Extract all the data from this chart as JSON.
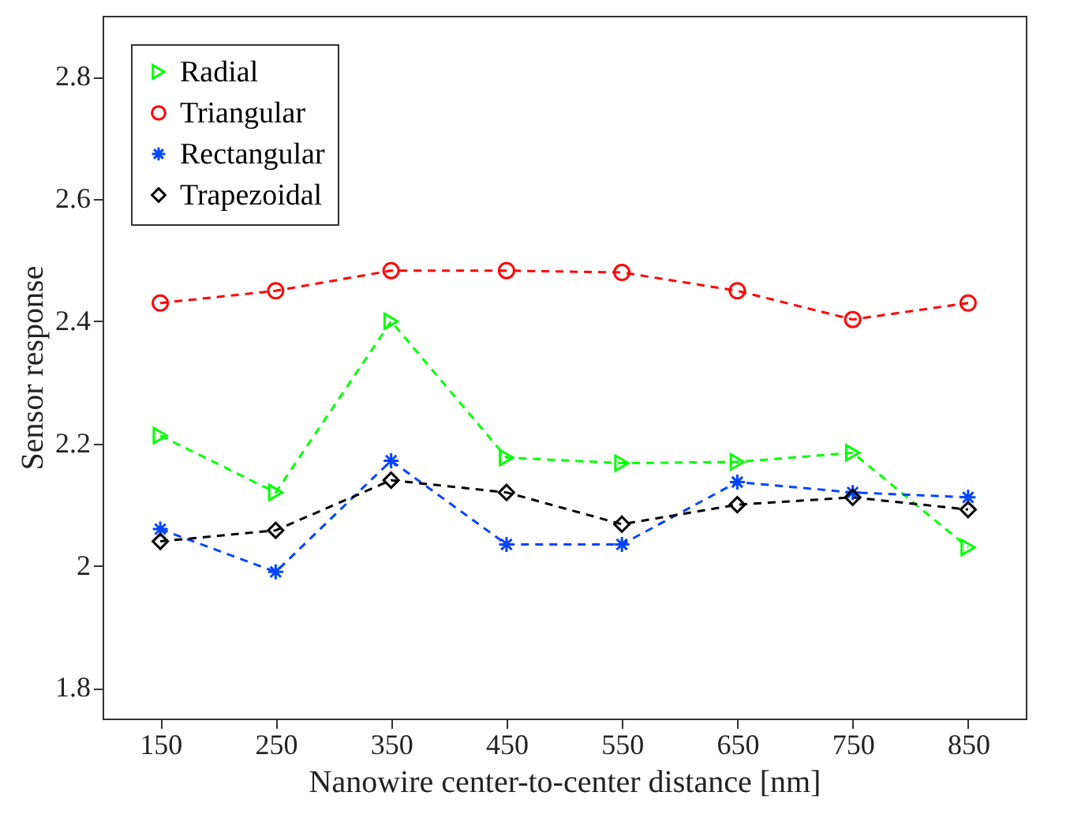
{
  "chart_data": {
    "type": "line",
    "xlabel": "Nanowire center-to-center distance [nm]",
    "ylabel": "Sensor response",
    "x": [
      150,
      250,
      350,
      450,
      550,
      650,
      750,
      850
    ],
    "xlim": [
      100,
      900
    ],
    "xticks": [
      150,
      250,
      350,
      450,
      550,
      650,
      750,
      850
    ],
    "ylim": [
      1.75,
      2.9
    ],
    "yticks": [
      1.8,
      2,
      2.2,
      2.4,
      2.6,
      2.8
    ],
    "line_style": "dashed",
    "legend": "top left",
    "grid": false,
    "series": [
      {
        "name": "Radial",
        "color": "#00ff00",
        "marker": "triangle",
        "values": [
          2.213,
          2.12,
          2.4,
          2.177,
          2.168,
          2.17,
          2.185,
          2.03
        ]
      },
      {
        "name": "Triangular",
        "color": "#ff0000",
        "marker": "circle",
        "values": [
          2.43,
          2.45,
          2.483,
          2.483,
          2.48,
          2.45,
          2.403,
          2.43
        ]
      },
      {
        "name": "Rectangular",
        "color": "#0044ff",
        "marker": "cross",
        "values": [
          2.06,
          1.99,
          2.172,
          2.035,
          2.035,
          2.137,
          2.12,
          2.112
        ]
      },
      {
        "name": "Trapezoidal",
        "color": "#000000",
        "marker": "diamond",
        "values": [
          2.04,
          2.058,
          2.14,
          2.12,
          2.068,
          2.1,
          2.112,
          2.092
        ]
      }
    ]
  }
}
